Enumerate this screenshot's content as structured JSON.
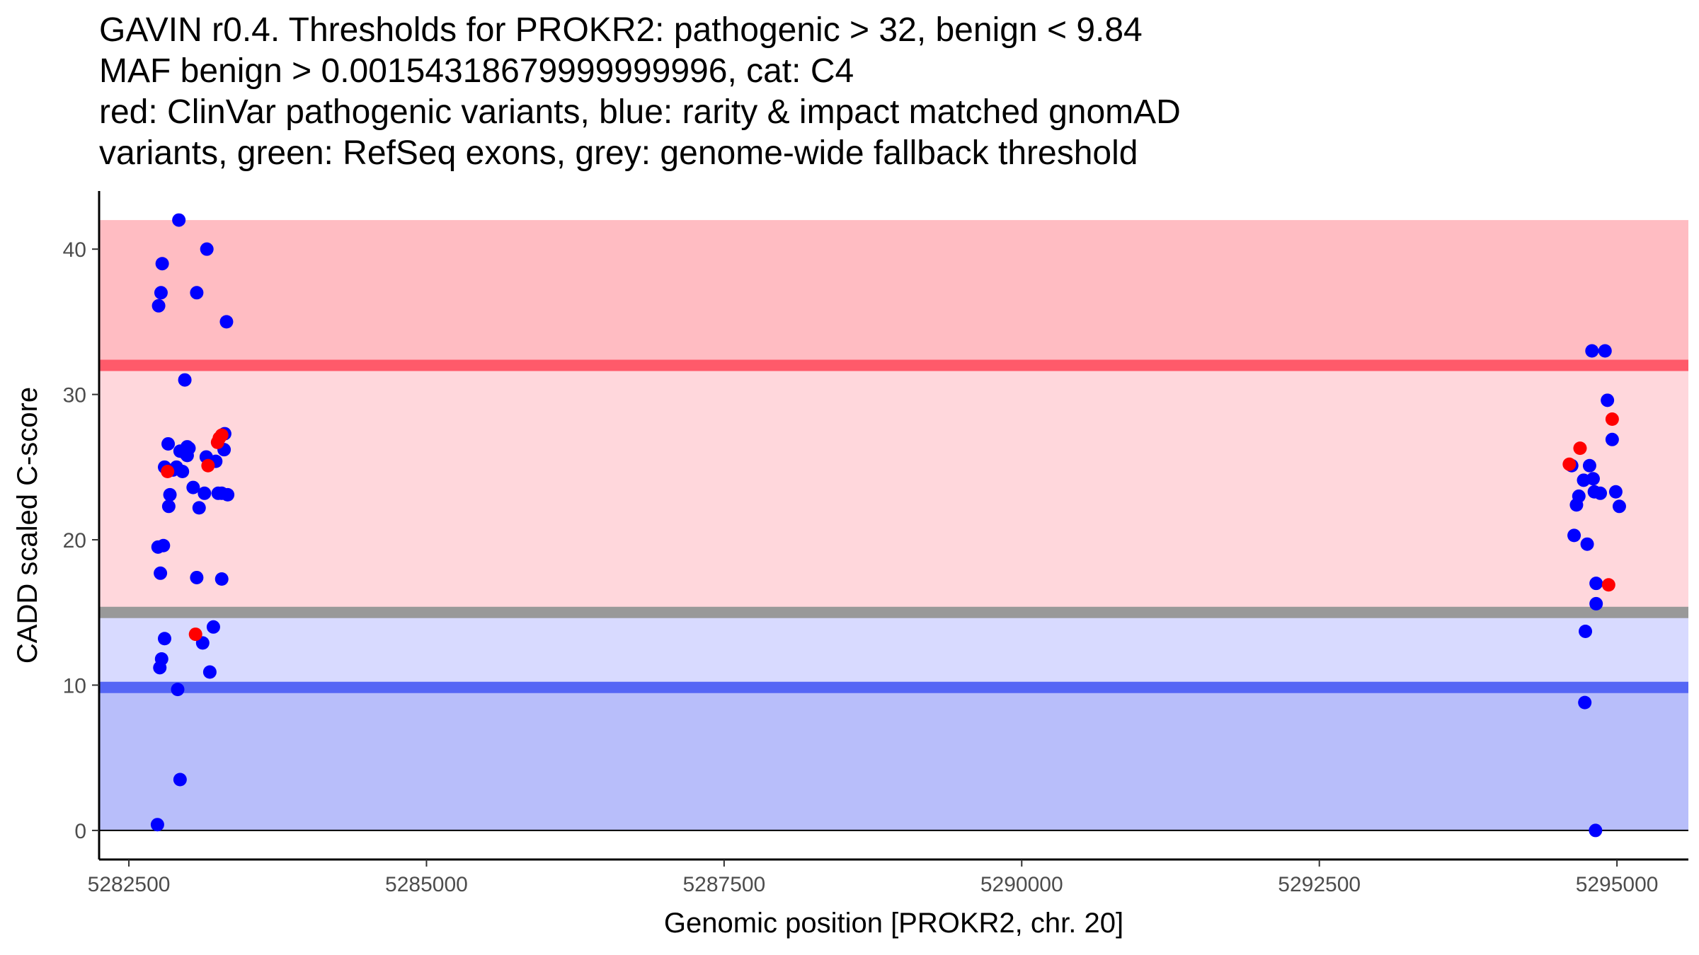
{
  "chart_data": {
    "type": "scatter",
    "title_lines": [
      "GAVIN r0.4. Thresholds for PROKR2: pathogenic > 32, benign < 9.84",
      "MAF benign > 0.00154318679999999996, cat: C4",
      "red: ClinVar pathogenic variants, blue: rarity & impact matched gnomAD",
      "variants, green: RefSeq exons, grey: genome-wide fallback threshold"
    ],
    "xlabel": "Genomic position [PROKR2, chr. 20]",
    "ylabel": "CADD scaled C-score",
    "xlim": [
      5282250,
      5295600
    ],
    "ylim": [
      -2,
      44
    ],
    "xticks": [
      5282500,
      5285000,
      5287500,
      5290000,
      5292500,
      5295000
    ],
    "xtick_labels": [
      "5282500",
      "5285000",
      "5287500",
      "5290000",
      "5292500",
      "5295000"
    ],
    "yticks": [
      0,
      10,
      20,
      30,
      40
    ],
    "ytick_labels": [
      "0",
      "10",
      "20",
      "30",
      "40"
    ],
    "thresholds": {
      "pathogenic": 32,
      "benign": 9.84,
      "genome_wide_fallback": 15
    },
    "bands": [
      {
        "name": "pathogenic-band",
        "y0": 32,
        "y1": 42,
        "color": "#ffbcc2"
      },
      {
        "name": "intermediate-pathogenic-band",
        "y0": 15,
        "y1": 32,
        "color": "#ffd7dc"
      },
      {
        "name": "intermediate-benign-band",
        "y0": 9.84,
        "y1": 15,
        "color": "#d8daff"
      },
      {
        "name": "benign-band",
        "y0": 0,
        "y1": 9.84,
        "color": "#b8befa"
      }
    ],
    "threshold_lines": [
      {
        "name": "pathogenic-threshold-line",
        "y": 32,
        "color": "#ff5a6a"
      },
      {
        "name": "fallback-threshold-line",
        "y": 15,
        "color": "#999999"
      },
      {
        "name": "benign-threshold-line",
        "y": 9.84,
        "color": "#5566f5"
      },
      {
        "name": "zero-line",
        "y": 0,
        "color": "#000000"
      }
    ],
    "series": [
      {
        "name": "gnomAD matched variants",
        "color": "#0000ff",
        "points": [
          [
            5282740,
            0.4
          ],
          [
            5282750,
            36.1
          ],
          [
            5282770,
            37.0
          ],
          [
            5282780,
            39.0
          ],
          [
            5282745,
            19.5
          ],
          [
            5282790,
            19.6
          ],
          [
            5282765,
            17.7
          ],
          [
            5282760,
            11.2
          ],
          [
            5282775,
            11.8
          ],
          [
            5282800,
            13.2
          ],
          [
            5282800,
            25.0
          ],
          [
            5282830,
            26.6
          ],
          [
            5282845,
            23.1
          ],
          [
            5282835,
            22.3
          ],
          [
            5282870,
            24.8
          ],
          [
            5282900,
            25.0
          ],
          [
            5282930,
            26.1
          ],
          [
            5282950,
            24.7
          ],
          [
            5282980,
            25.9
          ],
          [
            5282990,
            26.4
          ],
          [
            5283005,
            26.3
          ],
          [
            5282990,
            25.8
          ],
          [
            5282910,
            9.7
          ],
          [
            5282930,
            3.5
          ],
          [
            5282920,
            42.0
          ],
          [
            5282970,
            31.0
          ],
          [
            5283070,
            37.0
          ],
          [
            5283040,
            23.6
          ],
          [
            5283070,
            17.4
          ],
          [
            5283090,
            22.2
          ],
          [
            5283120,
            12.9
          ],
          [
            5283135,
            23.2
          ],
          [
            5283150,
            25.7
          ],
          [
            5283155,
            40.0
          ],
          [
            5283180,
            10.9
          ],
          [
            5283210,
            14.0
          ],
          [
            5283230,
            25.4
          ],
          [
            5283250,
            23.2
          ],
          [
            5283280,
            23.2
          ],
          [
            5283280,
            17.3
          ],
          [
            5283305,
            27.3
          ],
          [
            5283300,
            26.2
          ],
          [
            5283320,
            35.0
          ],
          [
            5283330,
            23.1
          ],
          [
            5294620,
            25.1
          ],
          [
            5294640,
            20.3
          ],
          [
            5294660,
            22.4
          ],
          [
            5294680,
            23.0
          ],
          [
            5294720,
            24.1
          ],
          [
            5294730,
            8.8
          ],
          [
            5294735,
            13.7
          ],
          [
            5294750,
            19.7
          ],
          [
            5294770,
            25.1
          ],
          [
            5294790,
            33.0
          ],
          [
            5294800,
            24.2
          ],
          [
            5294810,
            23.3
          ],
          [
            5294820,
            0.0
          ],
          [
            5294825,
            17.0
          ],
          [
            5294825,
            15.6
          ],
          [
            5294860,
            23.2
          ],
          [
            5294900,
            33.0
          ],
          [
            5294920,
            29.6
          ],
          [
            5294960,
            26.9
          ],
          [
            5294990,
            23.3
          ],
          [
            5295020,
            22.3
          ]
        ]
      },
      {
        "name": "ClinVar pathogenic variants",
        "color": "#ff0000",
        "points": [
          [
            5282825,
            24.7
          ],
          [
            5283060,
            13.5
          ],
          [
            5283165,
            25.1
          ],
          [
            5283245,
            26.7
          ],
          [
            5283260,
            27.0
          ],
          [
            5283280,
            27.2
          ],
          [
            5294600,
            25.2
          ],
          [
            5294690,
            26.3
          ],
          [
            5294930,
            16.9
          ],
          [
            5294960,
            28.3
          ]
        ]
      }
    ]
  }
}
